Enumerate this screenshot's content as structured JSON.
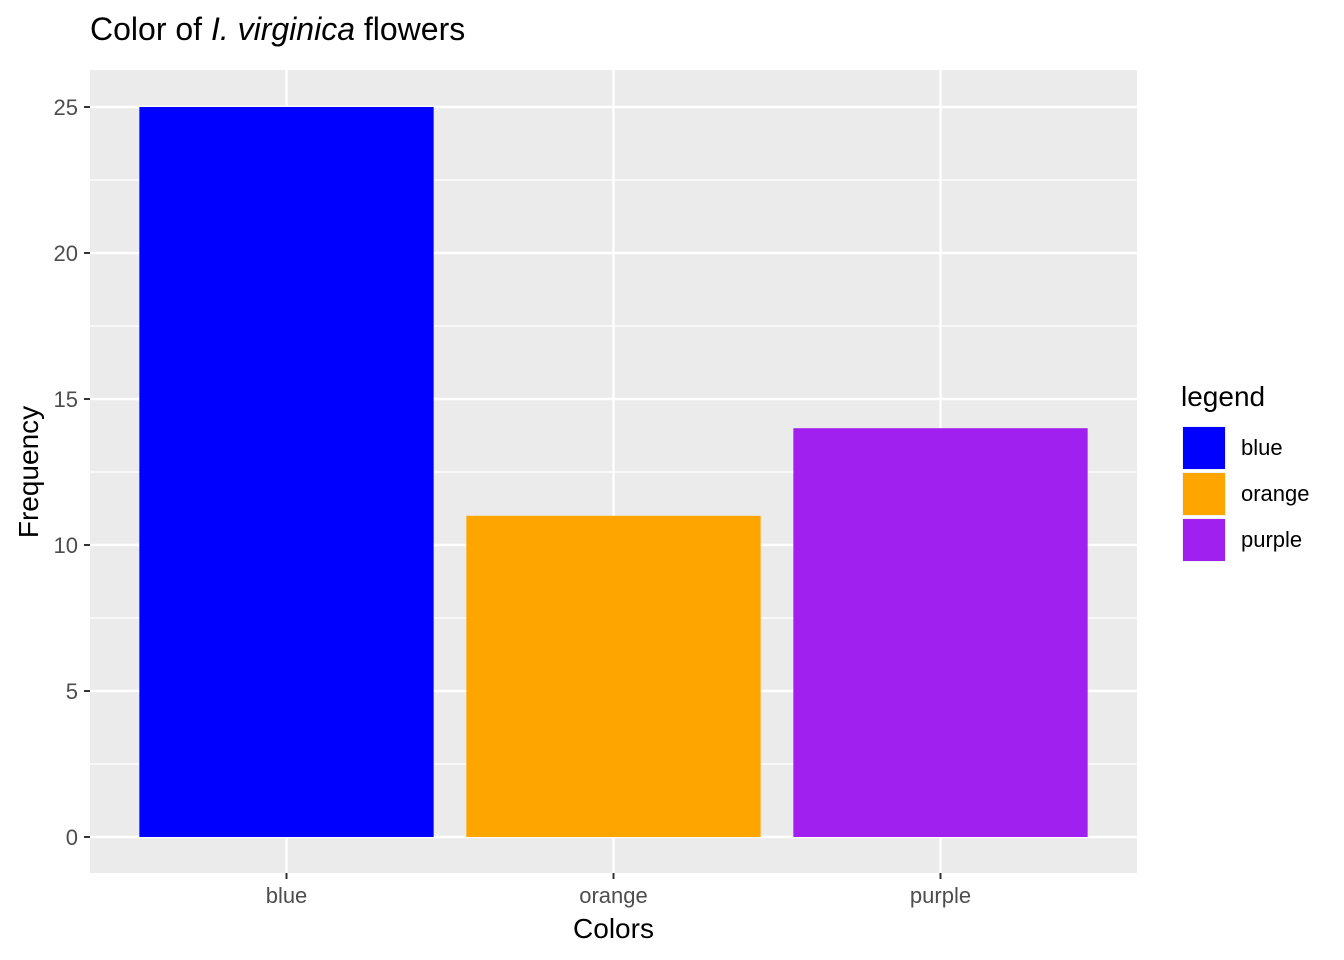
{
  "chart_data": {
    "type": "bar",
    "title_prefix": "Color of ",
    "title_italic": "I. virginica",
    "title_suffix": " flowers",
    "xlabel": "Colors",
    "ylabel": "Frequency",
    "categories": [
      "blue",
      "orange",
      "purple"
    ],
    "values": [
      25,
      11,
      14
    ],
    "colors": [
      "#0000FF",
      "#FFA500",
      "#A020F0"
    ],
    "ylim": [
      0,
      25
    ],
    "yticks": [
      0,
      5,
      10,
      15,
      20,
      25
    ],
    "grid": true,
    "panel_background": "#EBEBEB",
    "grid_color": "#FFFFFF",
    "legend": {
      "title": "legend",
      "position": "right",
      "items": [
        "blue",
        "orange",
        "purple"
      ]
    }
  }
}
